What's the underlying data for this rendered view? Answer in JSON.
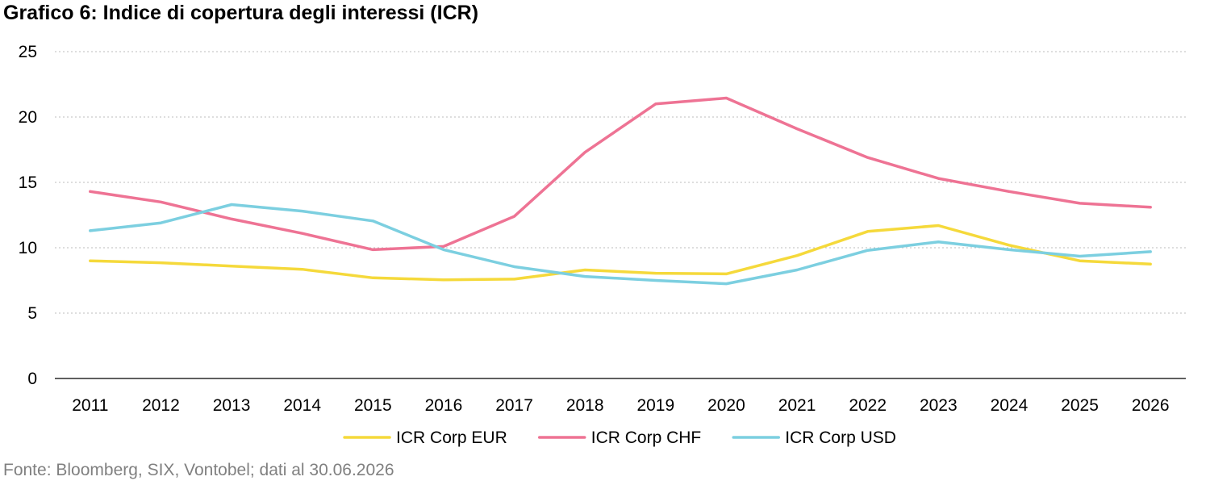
{
  "title": "Grafico 6: Indice di copertura degli interessi (ICR)",
  "source": "Fonte: Bloomberg, SIX, Vontobel; dati al 30.06.2026",
  "chart_data": {
    "type": "line",
    "title": "Grafico 6: Indice di copertura degli interessi (ICR)",
    "xlabel": "",
    "ylabel": "",
    "categories": [
      "2011",
      "2012",
      "2013",
      "2014",
      "2015",
      "2016",
      "2017",
      "2018",
      "2019",
      "2020",
      "2021",
      "2022",
      "2023",
      "2024",
      "2025",
      "2026"
    ],
    "ylim": [
      0,
      25
    ],
    "yticks": [
      0,
      5,
      10,
      15,
      20,
      25
    ],
    "grid": "horizontal dotted",
    "legend_position": "bottom",
    "series": [
      {
        "name": "ICR Corp EUR",
        "color": "#F5D93B",
        "values": [
          9.0,
          8.85,
          8.6,
          8.35,
          7.7,
          7.55,
          7.6,
          8.3,
          8.05,
          8.0,
          9.4,
          11.25,
          11.7,
          10.2,
          9.0,
          8.75
        ]
      },
      {
        "name": "ICR Corp CHF",
        "color": "#EE7394",
        "values": [
          14.3,
          13.5,
          12.2,
          11.1,
          9.85,
          10.1,
          12.4,
          17.3,
          21.0,
          21.45,
          19.1,
          16.9,
          15.3,
          14.3,
          13.4,
          13.1
        ]
      },
      {
        "name": "ICR Corp USD",
        "color": "#7CCFE0",
        "values": [
          11.3,
          11.9,
          13.3,
          12.8,
          12.05,
          9.85,
          8.55,
          7.8,
          7.5,
          7.25,
          8.3,
          9.8,
          10.45,
          9.85,
          9.35,
          9.7
        ]
      }
    ]
  }
}
